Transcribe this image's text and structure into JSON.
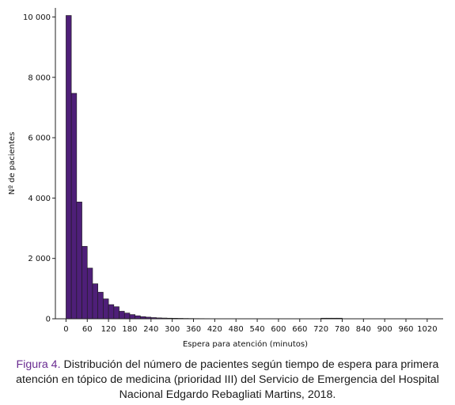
{
  "chart_data": {
    "type": "bar",
    "xlabel": "Espera para atención (minutos)",
    "ylabel": "Nº de pacientes",
    "bin_width_minutes": 15,
    "x_ticks": [
      0,
      60,
      120,
      180,
      240,
      300,
      360,
      420,
      480,
      540,
      600,
      660,
      720,
      780,
      840,
      900,
      960,
      1020
    ],
    "y_ticks": [
      0,
      2000,
      4000,
      6000,
      8000,
      10000
    ],
    "y_tick_labels": [
      "0",
      "2 000",
      "4 000",
      "6 000",
      "8 000",
      "10 000"
    ],
    "xlim": [
      -30,
      1065
    ],
    "ylim": [
      0,
      10300
    ],
    "bar_color": "#4e1f78",
    "bins_start": [
      0,
      15,
      30,
      45,
      60,
      75,
      90,
      105,
      120,
      135,
      150,
      165,
      180,
      195,
      210,
      225,
      240,
      255,
      270,
      285,
      300,
      315,
      330,
      345,
      360,
      375,
      390,
      405,
      420,
      435,
      450,
      465,
      480,
      495,
      510,
      525,
      540,
      555,
      570,
      585,
      600,
      615,
      630,
      645,
      660,
      675,
      690,
      705,
      720,
      735,
      750,
      765
    ],
    "values": [
      10050,
      7470,
      3870,
      2400,
      1680,
      1160,
      880,
      660,
      470,
      400,
      250,
      190,
      140,
      100,
      70,
      55,
      40,
      30,
      25,
      20,
      18,
      15,
      12,
      10,
      8,
      7,
      6,
      5,
      5,
      4,
      3,
      3,
      3,
      2,
      2,
      2,
      2,
      2,
      2,
      1,
      1,
      1,
      1,
      1,
      1,
      1,
      1,
      1,
      20,
      20,
      20,
      20
    ]
  },
  "caption": {
    "label": "Figura 4.",
    "text": " Distribución del número de pacientes según tiempo de espera para primera atención en tópico de medicina (prioridad III) del Servicio de Emergencia del Hospital Nacional Edgardo Rebagliati Martins, 2018."
  }
}
